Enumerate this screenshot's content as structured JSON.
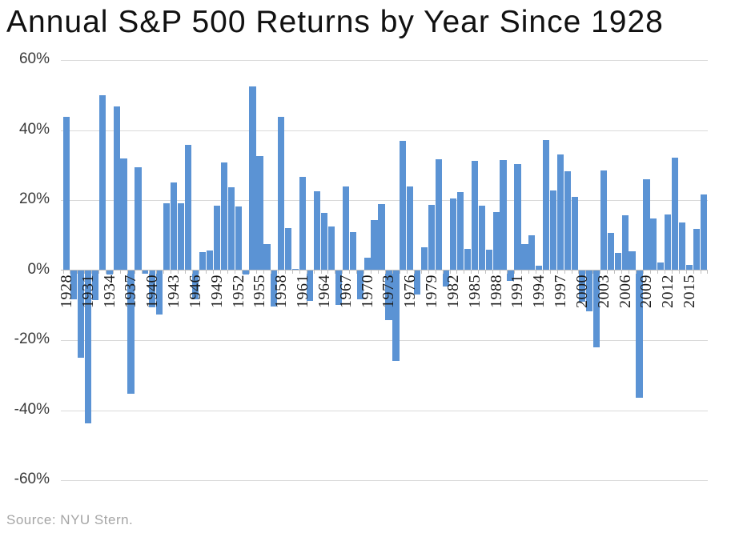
{
  "title": "Annual S&P 500 Returns by Year Since 1928",
  "source": "Source: NYU Stern.",
  "colors": {
    "bar": "#5B93D4",
    "gridline": "#D9D9D9",
    "axis_line": "#BFBFBF",
    "title_text": "#111111",
    "y_label_text": "#3A3A3A",
    "x_label_text": "#1C1C1C",
    "source_text": "#A5A5A5",
    "background": "#FFFFFF"
  },
  "chart_data": {
    "type": "bar",
    "title": "Annual S&P 500 Returns by Year Since 1928",
    "xlabel": "",
    "ylabel": "",
    "ylim": [
      -60,
      60
    ],
    "grid": true,
    "y_tick_values": [
      60,
      40,
      20,
      0,
      -20,
      -40,
      -60
    ],
    "y_tick_labels": [
      "60%",
      "40%",
      "20%",
      "0%",
      "-20%",
      "-40%",
      "-60%"
    ],
    "x_tick_labels": [
      "1928",
      "1931",
      "1934",
      "1937",
      "1940",
      "1943",
      "1946",
      "1949",
      "1952",
      "1955",
      "1958",
      "1961",
      "1964",
      "1967",
      "1970",
      "1973",
      "1976",
      "1979",
      "1982",
      "1985",
      "1988",
      "1991",
      "1994",
      "1997",
      "2000",
      "2003",
      "2006",
      "2009",
      "2012",
      "2015"
    ],
    "x": [
      1928,
      1929,
      1930,
      1931,
      1932,
      1933,
      1934,
      1935,
      1936,
      1937,
      1938,
      1939,
      1940,
      1941,
      1942,
      1943,
      1944,
      1945,
      1946,
      1947,
      1948,
      1949,
      1950,
      1951,
      1952,
      1953,
      1954,
      1955,
      1956,
      1957,
      1958,
      1959,
      1960,
      1961,
      1962,
      1963,
      1964,
      1965,
      1966,
      1967,
      1968,
      1969,
      1970,
      1971,
      1972,
      1973,
      1974,
      1975,
      1976,
      1977,
      1978,
      1979,
      1980,
      1981,
      1982,
      1983,
      1984,
      1985,
      1986,
      1987,
      1988,
      1989,
      1990,
      1991,
      1992,
      1993,
      1994,
      1995,
      1996,
      1997,
      1998,
      1999,
      2000,
      2001,
      2002,
      2003,
      2004,
      2005,
      2006,
      2007,
      2008,
      2009,
      2010,
      2011,
      2012,
      2013,
      2014,
      2015,
      2016,
      2017
    ],
    "values": [
      43.81,
      -8.3,
      -25.12,
      -43.84,
      -8.64,
      49.98,
      -1.19,
      46.74,
      31.94,
      -35.34,
      29.28,
      -1.1,
      -10.67,
      -12.77,
      19.17,
      25.06,
      19.03,
      35.82,
      -8.43,
      5.2,
      5.7,
      18.3,
      30.81,
      23.68,
      18.15,
      -1.21,
      52.56,
      32.6,
      7.44,
      -10.46,
      43.72,
      12.06,
      0.34,
      26.64,
      -8.81,
      22.61,
      16.42,
      12.4,
      -9.97,
      23.8,
      10.81,
      -8.24,
      3.56,
      14.22,
      18.76,
      -14.31,
      -25.9,
      37.0,
      23.83,
      -6.98,
      6.51,
      18.52,
      31.74,
      -4.7,
      20.42,
      22.34,
      6.15,
      31.24,
      18.49,
      5.81,
      16.54,
      31.48,
      -3.06,
      30.23,
      7.49,
      9.97,
      1.33,
      37.2,
      22.68,
      33.1,
      28.34,
      20.89,
      -9.03,
      -11.85,
      -21.97,
      28.36,
      10.74,
      4.83,
      15.61,
      5.48,
      -36.55,
      25.94,
      14.82,
      2.1,
      15.89,
      32.15,
      13.52,
      1.38,
      11.77,
      21.61
    ],
    "source": "Source: NYU Stern."
  }
}
